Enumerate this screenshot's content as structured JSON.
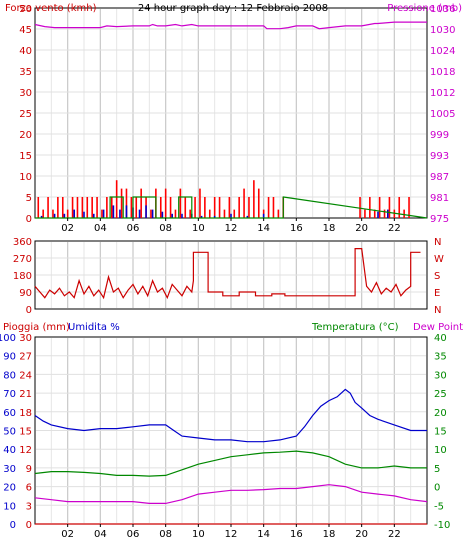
{
  "chart_data": [
    {
      "type": "line",
      "title": "24 hour graph day : 12 Febbraio 2008",
      "left_axis": {
        "label": "Forza vento (kmh)",
        "ticks": [
          "0",
          "5",
          "10",
          "15",
          "20",
          "25",
          "30",
          "35",
          "40",
          "45",
          "50"
        ],
        "range": [
          0,
          50
        ],
        "color": "#cc0000"
      },
      "right_axis": {
        "label": "Pressione (mb)",
        "ticks": [
          "975",
          "981",
          "987",
          "993",
          "999",
          "1005",
          "1012",
          "1018",
          "1024",
          "1030",
          "1036"
        ],
        "range": [
          975,
          1036
        ],
        "color": "#cc00cc"
      },
      "x_ticks": [
        "02",
        "04",
        "06",
        "08",
        "10",
        "12",
        "14",
        "16",
        "18",
        "20",
        "22"
      ],
      "x_range": [
        0,
        24
      ],
      "grid": true,
      "series": [
        {
          "color": "#cc00cc",
          "x": [
            0.0,
            0.6,
            1.2,
            2.0,
            3.0,
            4.0,
            4.4,
            5.0,
            6.0,
            7.0,
            7.2,
            7.5,
            8.0,
            8.6,
            9.0,
            9.6,
            10.0,
            11.0,
            12.0,
            13.0,
            14.0,
            14.2,
            15.0,
            15.5,
            16.0,
            17.0,
            17.4,
            18.0,
            19.0,
            20.0,
            20.8,
            21.0,
            22.0,
            23.0,
            24.0
          ],
          "values": [
            1031.2,
            1030.6,
            1030.3,
            1030.3,
            1030.3,
            1030.3,
            1030.8,
            1030.6,
            1030.8,
            1030.8,
            1031.2,
            1030.8,
            1030.8,
            1031.2,
            1030.8,
            1031.2,
            1030.8,
            1030.8,
            1030.8,
            1030.8,
            1030.8,
            1030.0,
            1030.0,
            1030.3,
            1030.8,
            1030.8,
            1030.0,
            1030.3,
            1030.8,
            1030.8,
            1031.5,
            1031.5,
            1031.9,
            1031.9,
            1031.9
          ]
        },
        {
          "color": "#ff0000",
          "style": "bars",
          "x": [
            0.2,
            0.5,
            0.8,
            1.1,
            1.4,
            1.7,
            2.0,
            2.3,
            2.6,
            2.9,
            3.2,
            3.5,
            3.8,
            4.1,
            4.4,
            4.7,
            5.0,
            5.3,
            5.6,
            5.9,
            6.2,
            6.5,
            6.8,
            7.1,
            7.4,
            7.7,
            8.0,
            8.3,
            8.6,
            8.9,
            9.2,
            9.5,
            9.8,
            10.1,
            10.4,
            10.7,
            11.0,
            11.3,
            11.6,
            11.9,
            12.2,
            12.5,
            12.8,
            13.1,
            13.4,
            13.7,
            14.0,
            14.3,
            14.6,
            14.9,
            15.2,
            19.9,
            20.2,
            20.5,
            20.8,
            21.1,
            21.4,
            21.7,
            22.0,
            22.3,
            22.6,
            22.9
          ],
          "values": [
            5,
            2,
            5,
            2,
            5,
            5,
            2,
            5,
            5,
            5,
            5,
            5,
            5,
            2,
            5,
            5,
            9,
            7,
            7,
            5,
            5,
            7,
            5,
            2,
            7,
            5,
            7,
            5,
            2,
            7,
            5,
            2,
            5,
            7,
            5,
            2,
            5,
            5,
            2,
            5,
            2,
            5,
            7,
            5,
            9,
            7,
            2,
            5,
            5,
            2,
            5,
            5,
            2,
            5,
            2,
            5,
            2,
            5,
            2,
            5,
            2,
            5
          ]
        },
        {
          "color": "#0000cc",
          "style": "bars",
          "x": [
            0.4,
            1.2,
            1.8,
            2.4,
            3.0,
            3.6,
            4.2,
            4.8,
            5.2,
            5.6,
            6.0,
            6.4,
            6.8,
            7.2,
            7.8,
            8.4,
            9.0,
            9.6,
            10.2,
            11.0,
            12.0,
            13.0,
            14.0,
            21.0,
            21.6
          ],
          "values": [
            0.5,
            1,
            1,
            2,
            1.5,
            1,
            2,
            3,
            2,
            3,
            2.5,
            2,
            3,
            2,
            1.5,
            1,
            1,
            1,
            0.5,
            0.5,
            1,
            0.5,
            1,
            1.5,
            2
          ]
        },
        {
          "color": "#008800",
          "x": [
            0,
            4.6,
            4.6,
            5.4,
            5.4,
            6.0,
            6.0,
            7.4,
            7.4,
            8.8,
            8.8,
            9.6,
            9.6,
            15.2,
            15.2,
            24
          ],
          "values": [
            0,
            0,
            5,
            5,
            0,
            0,
            5,
            5,
            0,
            0,
            5,
            5,
            0,
            0,
            5,
            0
          ]
        }
      ]
    },
    {
      "type": "line",
      "left_axis": {
        "ticks": [
          "0",
          "90",
          "180",
          "270",
          "360"
        ],
        "range": [
          0,
          360
        ],
        "color": "#cc0000"
      },
      "right_axis": {
        "ticks": [
          "N",
          "E",
          "S",
          "W",
          "N"
        ],
        "color": "#cc0000"
      },
      "x_range": [
        0,
        24
      ],
      "grid": true,
      "series": [
        {
          "color": "#cc0000",
          "x": [
            0.0,
            0.3,
            0.6,
            0.9,
            1.2,
            1.5,
            1.8,
            2.1,
            2.4,
            2.7,
            3.0,
            3.3,
            3.6,
            3.9,
            4.2,
            4.5,
            4.8,
            5.1,
            5.4,
            5.7,
            6.0,
            6.3,
            6.6,
            6.9,
            7.2,
            7.5,
            7.8,
            8.1,
            8.4,
            8.7,
            9.0,
            9.3,
            9.6,
            9.7,
            9.7,
            10.6,
            10.6,
            11.5,
            11.5,
            12.5,
            12.5,
            13.5,
            13.5,
            14.5,
            14.5,
            15.3,
            15.3,
            19.6,
            19.6,
            20.0,
            20.3,
            20.6,
            20.9,
            21.2,
            21.5,
            21.8,
            22.1,
            22.4,
            22.7,
            23.0,
            23.0,
            23.6
          ],
          "values": [
            120,
            90,
            60,
            100,
            80,
            110,
            70,
            90,
            60,
            150,
            80,
            120,
            70,
            100,
            60,
            170,
            90,
            110,
            60,
            100,
            130,
            80,
            120,
            70,
            150,
            90,
            110,
            60,
            130,
            100,
            70,
            120,
            90,
            150,
            300,
            300,
            90,
            90,
            70,
            70,
            90,
            90,
            70,
            70,
            80,
            80,
            70,
            70,
            320,
            320,
            120,
            90,
            140,
            80,
            110,
            90,
            130,
            70,
            100,
            120,
            300,
            300
          ]
        }
      ]
    },
    {
      "type": "line",
      "left_axis_outer": {
        "label": "Pioggia (mm)",
        "ticks": [
          "0",
          "10",
          "20",
          "30",
          "40",
          "50",
          "60",
          "70",
          "80",
          "90",
          "100"
        ],
        "range": [
          0,
          100
        ],
        "color": "#0000cc"
      },
      "left_axis_inner": {
        "label": "Umidita %",
        "ticks": [
          "0",
          "3",
          "6",
          "9",
          "12",
          "15",
          "18",
          "21",
          "24",
          "27",
          "30"
        ],
        "range": [
          0,
          30
        ],
        "color": "#cc0000"
      },
      "right_axis": {
        "label": "Temperatura (°C)",
        "ticks": [
          "-10",
          "-5",
          "0",
          "5",
          "10",
          "15",
          "20",
          "25",
          "30",
          "35",
          "40"
        ],
        "range": [
          -10,
          40
        ],
        "color": "#008800"
      },
      "right_axis_extra_label": {
        "label": "Dew Point",
        "color": "#cc00cc"
      },
      "x_ticks": [
        "02",
        "04",
        "06",
        "08",
        "10",
        "12",
        "14",
        "16",
        "18",
        "20",
        "22"
      ],
      "x_range": [
        0,
        24
      ],
      "grid": true,
      "series": [
        {
          "color": "#0000cc",
          "x": [
            0,
            0.5,
            1,
            2,
            3,
            4,
            5,
            6,
            7,
            8,
            8.5,
            9,
            10,
            11,
            12,
            13,
            14,
            15,
            16,
            16.5,
            17,
            17.5,
            18,
            18.5,
            19,
            19.3,
            19.6,
            20,
            20.5,
            21,
            22,
            23,
            24
          ],
          "values": [
            58,
            55,
            53,
            51,
            50,
            51,
            51,
            52,
            53,
            53,
            50,
            47,
            46,
            45,
            45,
            44,
            44,
            45,
            47,
            52,
            58,
            63,
            66,
            68,
            72,
            70,
            65,
            62,
            58,
            56,
            53,
            50,
            50
          ]
        },
        {
          "color": "#008800",
          "x": [
            0,
            1,
            2,
            3,
            4,
            5,
            6,
            7,
            8,
            9,
            10,
            11,
            12,
            13,
            14,
            15,
            16,
            17,
            18,
            19,
            20,
            21,
            22,
            23,
            24
          ],
          "values": [
            3.5,
            4.0,
            4.0,
            3.8,
            3.5,
            3.0,
            3.0,
            2.8,
            3.0,
            4.5,
            6.0,
            7.0,
            8.0,
            8.5,
            9.0,
            9.2,
            9.5,
            9.0,
            8.0,
            6.0,
            5.0,
            5.0,
            5.5,
            5.0,
            5.0
          ]
        },
        {
          "color": "#cc00cc",
          "x": [
            0,
            1,
            2,
            3,
            4,
            5,
            6,
            7,
            8,
            9,
            10,
            11,
            12,
            13,
            14,
            15,
            16,
            17,
            18,
            19,
            20,
            21,
            22,
            23,
            24
          ],
          "values": [
            -3.0,
            -3.5,
            -4.0,
            -4.0,
            -4.0,
            -4.0,
            -4.0,
            -4.5,
            -4.5,
            -3.5,
            -2.0,
            -1.5,
            -1.0,
            -1.0,
            -0.8,
            -0.5,
            -0.5,
            0.0,
            0.5,
            0.0,
            -1.5,
            -2.0,
            -2.5,
            -3.5,
            -4.0
          ]
        },
        {
          "color": "#cc0000",
          "x": [
            0,
            24
          ],
          "values": [
            0,
            0
          ]
        }
      ]
    }
  ]
}
